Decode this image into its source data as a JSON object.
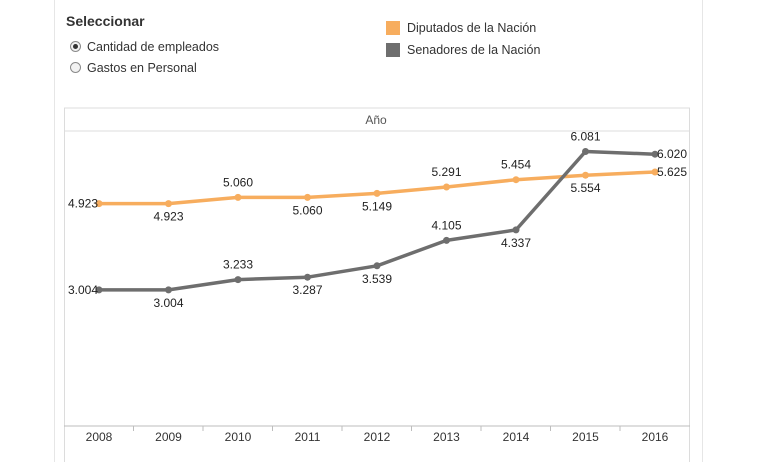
{
  "selector": {
    "title": "Seleccionar",
    "options": [
      {
        "label": "Cantidad de empleados",
        "checked": true
      },
      {
        "label": "Gastos en Personal",
        "checked": false
      }
    ]
  },
  "legend": [
    {
      "label": "Diputados de la Nación",
      "color": "#f7ad5e"
    },
    {
      "label": "Senadores de la Nación",
      "color": "#6e6e6e"
    }
  ],
  "chart_data": {
    "type": "line",
    "title": "Año",
    "xlabel": "Año",
    "ylabel": "",
    "categories": [
      "2008",
      "2009",
      "2010",
      "2011",
      "2012",
      "2013",
      "2014",
      "2015",
      "2016"
    ],
    "ylim": [
      0,
      6500
    ],
    "series": [
      {
        "name": "Diputados de la Nación",
        "color": "#f7ad5e",
        "values": [
          4923,
          4923,
          5060,
          5060,
          5149,
          5291,
          5454,
          5554,
          5625
        ],
        "labels": [
          "4.923",
          "4.923",
          "5.060",
          "5.060",
          "5.149",
          "5.291",
          "5.454",
          "5.554",
          "5.625"
        ]
      },
      {
        "name": "Senadores de la Nación",
        "color": "#6e6e6e",
        "values": [
          3004,
          3004,
          3233,
          3287,
          3539,
          4105,
          4337,
          6081,
          6020
        ],
        "labels": [
          "3.004",
          "3.004",
          "3.233",
          "3.287",
          "3.539",
          "4.105",
          "4.337",
          "6.081",
          "6.020"
        ]
      }
    ]
  }
}
